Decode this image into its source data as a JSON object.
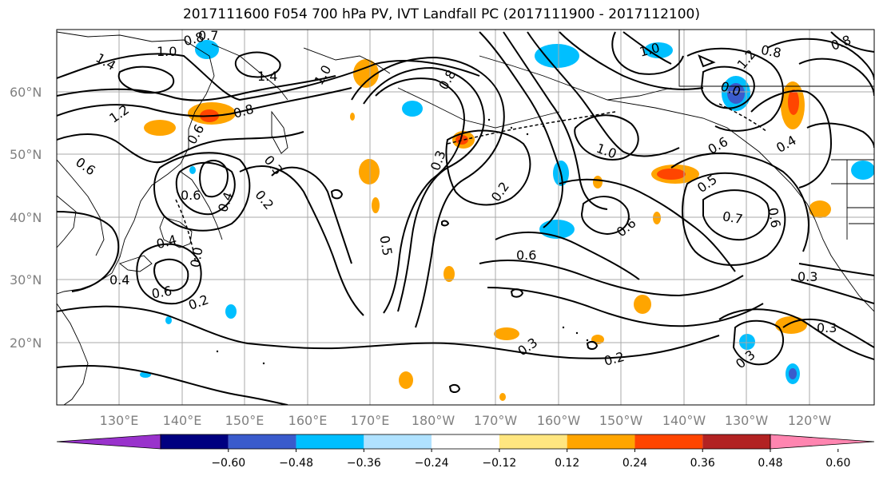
{
  "title": "2017111600 F054 700 hPa PV, IVT Landfall PC (2017111900 - 2017112100)",
  "lat_labels": [
    "60°N",
    "50°N",
    "40°N",
    "30°N",
    "20°N"
  ],
  "lon_labels": [
    "130°E",
    "140°E",
    "150°E",
    "160°E",
    "170°E",
    "180°W",
    "170°W",
    "160°W",
    "150°W",
    "140°W",
    "130°W",
    "120°W"
  ],
  "colorbar": {
    "colors": [
      "#9932cc",
      "#000080",
      "#3a5bcc",
      "#00bfff",
      "#b0e2ff",
      "#ffffff",
      "#ffe680",
      "#ffa500",
      "#ff4500",
      "#b22222",
      "#ff85b0"
    ],
    "tick_labels": [
      "−0.60",
      "−0.48",
      "−0.36",
      "−0.24",
      "−0.12",
      "0.12",
      "0.24",
      "0.36",
      "0.48",
      "0.60"
    ]
  },
  "contour_labels": [
    "0.8",
    "0.7",
    "1.0",
    "1.4",
    "1.2",
    "1.4",
    "1.0",
    "0.8",
    "0.6",
    "0.6",
    "0.3",
    "0.2",
    "0.6",
    "0.4",
    "0.4",
    "0.4",
    "0.6",
    "0.0",
    "0.2",
    "0.5",
    "0.8",
    "0.3",
    "0.2",
    "1.0",
    "0.6",
    "0.6",
    "0.3",
    "0.2",
    "1.0",
    "0.8",
    "1.2",
    "0.0",
    "0.6",
    "0.4",
    "0.5",
    "0.7",
    "0.6",
    "0.3",
    "0.3",
    "0.3",
    "0.8"
  ]
}
